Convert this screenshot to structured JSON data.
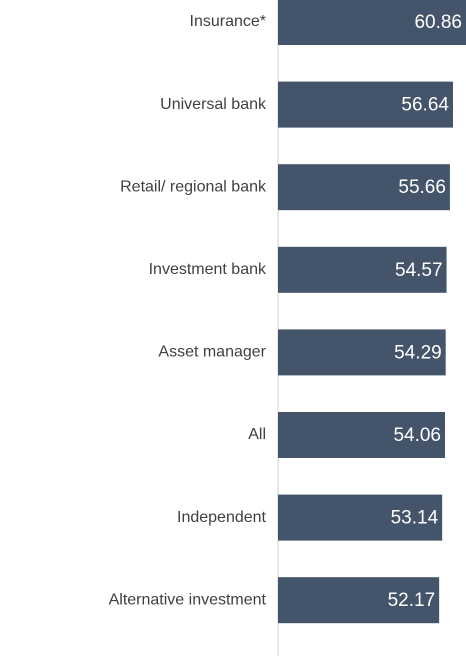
{
  "chart_data": {
    "type": "bar",
    "orientation": "horizontal",
    "categories": [
      "Insurance*",
      "Universal bank",
      "Retail/ regional  bank",
      "Investment  bank",
      "Asset manager",
      "All",
      "Independent",
      "Alternative investment"
    ],
    "values": [
      60.86,
      56.64,
      55.66,
      54.57,
      54.29,
      54.06,
      53.14,
      52.17
    ],
    "value_labels": [
      "60.86",
      "56.64",
      "55.66",
      "54.57",
      "54.29",
      "54.06",
      "53.14",
      "52.17"
    ],
    "color": "#44546a"
  }
}
